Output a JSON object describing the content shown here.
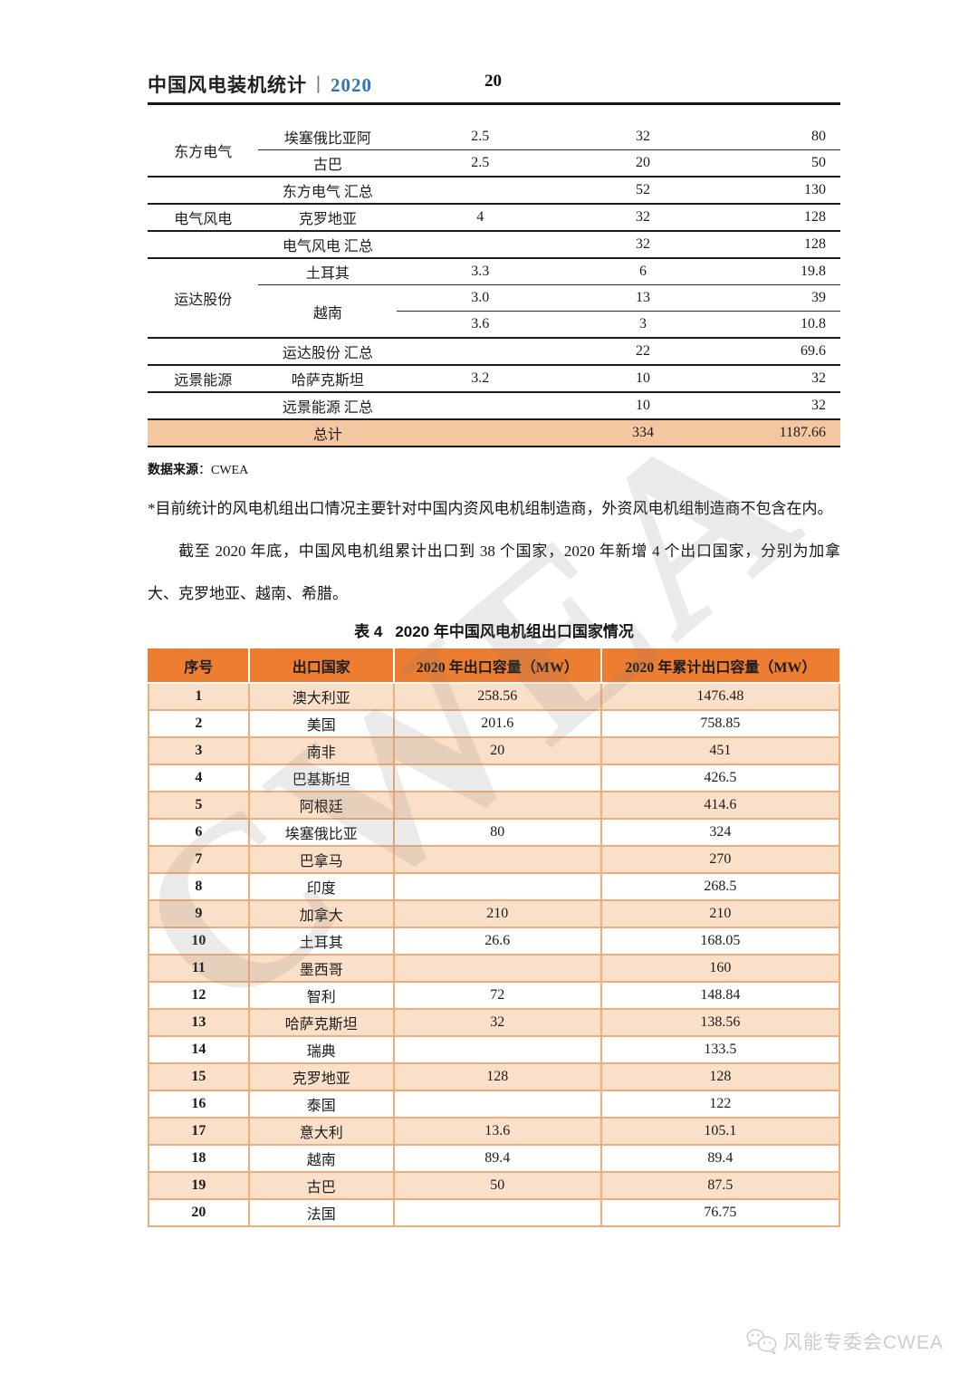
{
  "colors": {
    "accent_orange": "#ED7D31",
    "row_peach": "#FBE0C9",
    "total_row_peach": "#F5C7A0",
    "grid_orange": "#F2AC7B",
    "year_blue": "#2E74B5",
    "watermark_gray": "#7d7d7d"
  },
  "header": {
    "title": "中国风电装机统计",
    "separator": "丨",
    "year": "2020",
    "page_number": "20"
  },
  "t1": {
    "rows": [
      {
        "company": "东方电气",
        "country": "埃塞俄比亚阿",
        "rating": "2.5",
        "units": "32",
        "capacity": "80"
      },
      {
        "country": "古巴",
        "rating": "2.5",
        "units": "20",
        "capacity": "50"
      },
      {
        "label": "东方电气 汇总",
        "units": "52",
        "capacity": "130"
      },
      {
        "company": "电气风电",
        "country": "克罗地亚",
        "rating": "4",
        "units": "32",
        "capacity": "128"
      },
      {
        "label": "电气风电 汇总",
        "units": "32",
        "capacity": "128"
      },
      {
        "company": "运达股份",
        "country": "土耳其",
        "rating": "3.3",
        "units": "6",
        "capacity": "19.8"
      },
      {
        "country": "越南",
        "rating": "3.0",
        "units": "13",
        "capacity": "39"
      },
      {
        "rating": "3.6",
        "units": "3",
        "capacity": "10.8"
      },
      {
        "label": "运达股份 汇总",
        "units": "22",
        "capacity": "69.6"
      },
      {
        "company": "远景能源",
        "country": "哈萨克斯坦",
        "rating": "3.2",
        "units": "10",
        "capacity": "32"
      },
      {
        "label": "远景能源 汇总",
        "units": "10",
        "capacity": "32"
      },
      {
        "label": "总计",
        "units": "334",
        "capacity": "1187.66"
      }
    ]
  },
  "source": {
    "label": "数据来源",
    "colon": "：",
    "value": "CWEA"
  },
  "note": "*目前统计的风电机组出口情况主要针对中国内资风电机组制造商，外资风电机组制造商不包含在内。",
  "paragraph": "截至 2020 年底，中国风电机组累计出口到 38 个国家，2020 年新增 4 个出口国家，分别为加拿大、克罗地亚、越南、希腊。",
  "table4": {
    "title_prefix": "表 4",
    "title": "2020 年中国风电机组出口国家情况",
    "headers": [
      "序号",
      "出口国家",
      "2020 年出口容量（MW）",
      "2020 年累计出口容量（MW）"
    ],
    "rows": [
      [
        "1",
        "澳大利亚",
        "258.56",
        "1476.48"
      ],
      [
        "2",
        "美国",
        "201.6",
        "758.85"
      ],
      [
        "3",
        "南非",
        "20",
        "451"
      ],
      [
        "4",
        "巴基斯坦",
        "",
        "426.5"
      ],
      [
        "5",
        "阿根廷",
        "",
        "414.6"
      ],
      [
        "6",
        "埃塞俄比亚",
        "80",
        "324"
      ],
      [
        "7",
        "巴拿马",
        "",
        "270"
      ],
      [
        "8",
        "印度",
        "",
        "268.5"
      ],
      [
        "9",
        "加拿大",
        "210",
        "210"
      ],
      [
        "10",
        "土耳其",
        "26.6",
        "168.05"
      ],
      [
        "11",
        "墨西哥",
        "",
        "160"
      ],
      [
        "12",
        "智利",
        "72",
        "148.84"
      ],
      [
        "13",
        "哈萨克斯坦",
        "32",
        "138.56"
      ],
      [
        "14",
        "瑞典",
        "",
        "133.5"
      ],
      [
        "15",
        "克罗地亚",
        "128",
        "128"
      ],
      [
        "16",
        "泰国",
        "",
        "122"
      ],
      [
        "17",
        "意大利",
        "13.6",
        "105.1"
      ],
      [
        "18",
        "越南",
        "89.4",
        "89.4"
      ],
      [
        "19",
        "古巴",
        "50",
        "87.5"
      ],
      [
        "20",
        "法国",
        "",
        "76.75"
      ]
    ]
  },
  "watermark": "CWEA",
  "footer": {
    "text": "风能专委会CWEA"
  }
}
